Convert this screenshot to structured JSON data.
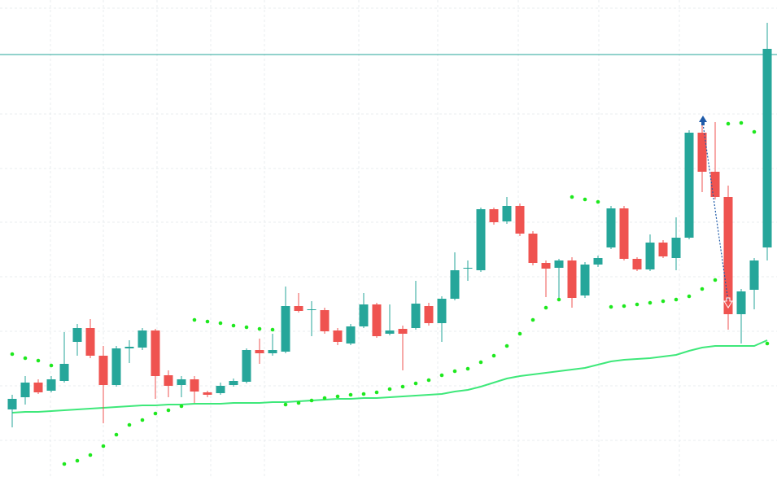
{
  "chart_data": {
    "type": "candlestick",
    "ylim": [
      0,
      586
    ],
    "up_color": "#26a69a",
    "down_color": "#ef5350",
    "open": [
      83,
      98,
      116,
      106,
      118,
      166,
      183,
      149,
      113,
      158,
      159,
      180,
      125,
      113,
      120,
      104,
      103,
      113,
      117,
      156,
      152,
      154,
      210,
      205,
      205,
      180,
      164,
      185,
      212,
      176,
      182,
      183,
      210,
      189,
      219,
      256,
      254,
      329,
      314,
      333,
      299,
      263,
      257,
      266,
      223,
      261,
      282,
      330,
      268,
      255,
      288,
      269,
      294,
      423,
      375,
      344,
      200,
      230,
      282
    ],
    "close": [
      96,
      116,
      104,
      120,
      139,
      183,
      149,
      113,
      158,
      160,
      180,
      124,
      112,
      120,
      105,
      101,
      112,
      118,
      156,
      152,
      156,
      210,
      204,
      206,
      179,
      166,
      185,
      212,
      173,
      180,
      176,
      213,
      189,
      219,
      254,
      257,
      329,
      313,
      333,
      299,
      263,
      256,
      266,
      220,
      261,
      269,
      330,
      268,
      255,
      288,
      271,
      294,
      423,
      375,
      344,
      200,
      228,
      266,
      526
    ],
    "high": [
      101,
      124,
      120,
      124,
      178,
      188,
      194,
      161,
      161,
      168,
      183,
      182,
      131,
      124,
      124,
      106,
      116,
      121,
      158,
      170,
      176,
      234,
      226,
      216,
      208,
      183,
      188,
      226,
      214,
      212,
      186,
      241,
      214,
      222,
      276,
      266,
      331,
      331,
      344,
      336,
      302,
      266,
      268,
      270,
      264,
      272,
      333,
      333,
      270,
      298,
      291,
      319,
      426,
      438,
      436,
      358,
      231,
      269,
      558
    ],
    "low": [
      61,
      89,
      102,
      104,
      116,
      149,
      146,
      66,
      111,
      140,
      156,
      96,
      98,
      98,
      91,
      98,
      101,
      111,
      115,
      139,
      149,
      152,
      202,
      173,
      176,
      162,
      162,
      183,
      171,
      174,
      131,
      181,
      186,
      166,
      217,
      241,
      252,
      310,
      311,
      296,
      260,
      221,
      219,
      208,
      220,
      258,
      280,
      266,
      253,
      253,
      269,
      254,
      292,
      350,
      341,
      181,
      164,
      206,
      266
    ],
    "moving_average": {
      "color": "#3ee87a",
      "values": [
        79,
        80,
        80,
        81,
        82,
        83,
        84,
        85,
        86,
        87,
        88,
        88,
        89,
        89,
        90,
        90,
        90,
        91,
        91,
        91,
        92,
        92,
        93,
        94,
        95,
        96,
        96,
        97,
        97,
        98,
        99,
        100,
        101,
        102,
        105,
        107,
        111,
        116,
        121,
        124,
        126,
        128,
        130,
        132,
        134,
        138,
        142,
        144,
        145,
        146,
        148,
        150,
        155,
        159,
        161,
        161,
        161,
        161,
        168
      ]
    },
    "parabolic_sar": {
      "color": "#1ee81e",
      "values": [
        151,
        146,
        143,
        137,
        16,
        20,
        27,
        38,
        52,
        64,
        70,
        78,
        82,
        87,
        193,
        191,
        189,
        186,
        184,
        182,
        181,
        89,
        91,
        94,
        97,
        99,
        101,
        102,
        104,
        108,
        111,
        115,
        119,
        125,
        130,
        133,
        141,
        149,
        161,
        176,
        193,
        208,
        218,
        344,
        341,
        338,
        209,
        210,
        212,
        214,
        216,
        218,
        222,
        231,
        242,
        434,
        435,
        424,
        164
      ]
    },
    "level": {
      "value": 519,
      "color": "#26a69a"
    }
  }
}
